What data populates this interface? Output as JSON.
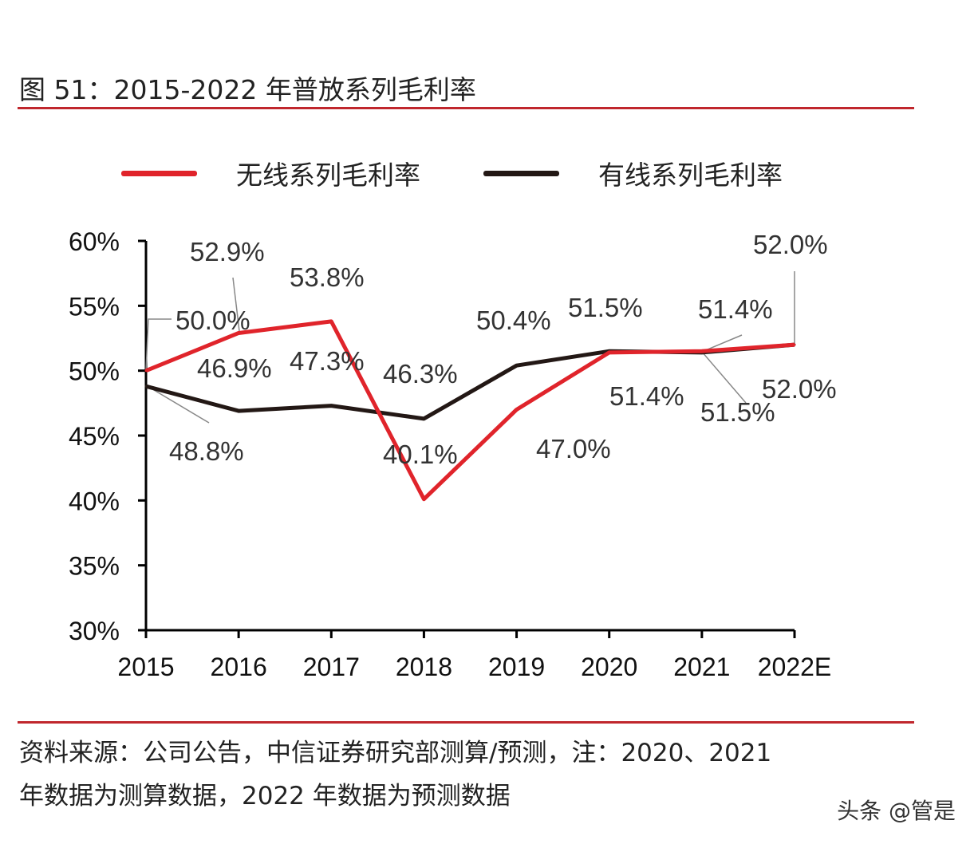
{
  "title": "图 51：2015-2022 年普放系列毛利率",
  "chart_data": {
    "type": "line",
    "title": "",
    "xlabel": "",
    "ylabel": "",
    "categories": [
      "2015",
      "2016",
      "2017",
      "2018",
      "2019",
      "2020",
      "2021",
      "2022E"
    ],
    "y_ticks": [
      "30%",
      "35%",
      "40%",
      "45%",
      "50%",
      "55%",
      "60%"
    ],
    "ylim": [
      30,
      60
    ],
    "grid": false,
    "legend_position": "top",
    "series": [
      {
        "name": "无线系列毛利率",
        "color": "#e0242b",
        "values": [
          50.0,
          52.9,
          53.8,
          40.1,
          47.0,
          51.4,
          51.5,
          52.0
        ],
        "labels": [
          "50.0%",
          "52.9%",
          "53.8%",
          "40.1%",
          "47.0%",
          "51.4%",
          "51.5%",
          "52.0%"
        ]
      },
      {
        "name": "有线系列毛利率",
        "color": "#231815",
        "values": [
          48.8,
          46.9,
          47.3,
          46.3,
          50.4,
          51.5,
          51.4,
          52.0
        ],
        "labels": [
          "48.8%",
          "46.9%",
          "47.3%",
          "46.3%",
          "50.4%",
          "51.5%",
          "51.4%",
          "52.0%"
        ]
      }
    ]
  },
  "source_line1": "资料来源：公司公告，中信证券研究部测算/预测，注：2020、2021",
  "source_line2": "年数据为测算数据，2022 年数据为预测数据",
  "watermark": "头条 @管是"
}
